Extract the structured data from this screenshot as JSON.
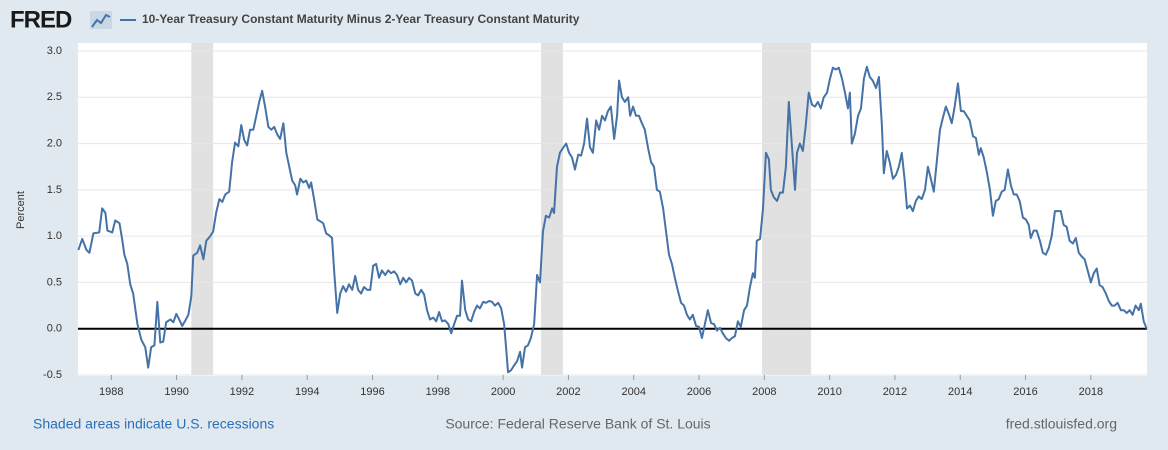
{
  "logo": "FRED",
  "chart_data": {
    "type": "line",
    "title": "10-Year Treasury Constant Maturity Minus 2-Year Treasury Constant Maturity",
    "y_label": "Percent",
    "note": "Shaded areas indicate U.S. recessions",
    "source": "Source: Federal Reserve Bank of St. Louis",
    "site": "fred.stlouisfed.org",
    "xlim": [
      1986.98,
      2019.72
    ],
    "xticks": [
      1988,
      1990,
      1992,
      1994,
      1996,
      1998,
      2000,
      2002,
      2004,
      2006,
      2008,
      2010,
      2012,
      2014,
      2016,
      2018
    ],
    "ylim": [
      -0.5,
      3.0
    ],
    "yticks": [
      -0.5,
      {
        "value": 0,
        "label": "0.0"
      },
      0.5,
      {
        "value": 1,
        "label": "1.0"
      },
      1.5,
      {
        "value": 2,
        "label": "2.0"
      },
      2.5,
      {
        "value": 3,
        "label": "3.0"
      }
    ],
    "grid": true,
    "recessions": [
      [
        1990.45,
        1991.12
      ],
      [
        2001.16,
        2001.83
      ],
      [
        2007.93,
        2009.43
      ]
    ],
    "recession_color": "#e1e1e1",
    "x": [
      1986.99,
      1987.11,
      1987.24,
      1987.33,
      1987.45,
      1987.63,
      1987.72,
      1987.82,
      1987.88,
      1988.03,
      1988.12,
      1988.25,
      1988.34,
      1988.4,
      1988.49,
      1988.58,
      1988.67,
      1988.8,
      1988.92,
      1989.04,
      1989.13,
      1989.22,
      1989.32,
      1989.41,
      1989.5,
      1989.59,
      1989.68,
      1989.81,
      1989.9,
      1989.99,
      1990.08,
      1990.17,
      1990.27,
      1990.36,
      1990.45,
      1990.51,
      1990.63,
      1990.72,
      1990.82,
      1990.91,
      1991.03,
      1991.12,
      1991.21,
      1991.31,
      1991.4,
      1991.49,
      1991.61,
      1991.7,
      1991.79,
      1991.89,
      1991.98,
      1992.07,
      1992.16,
      1992.25,
      1992.35,
      1992.44,
      1992.53,
      1992.62,
      1992.71,
      1992.81,
      1992.9,
      1992.99,
      1993.08,
      1993.17,
      1993.27,
      1993.36,
      1993.45,
      1993.54,
      1993.63,
      1993.69,
      1993.79,
      1993.88,
      1993.97,
      1994.06,
      1994.12,
      1994.21,
      1994.31,
      1994.4,
      1994.49,
      1994.58,
      1994.67,
      1994.76,
      1994.83,
      1994.92,
      1995.01,
      1995.1,
      1995.19,
      1995.28,
      1995.38,
      1995.47,
      1995.56,
      1995.65,
      1995.74,
      1995.84,
      1995.93,
      1996.02,
      1996.11,
      1996.2,
      1996.29,
      1996.39,
      1996.48,
      1996.57,
      1996.66,
      1996.75,
      1996.85,
      1996.94,
      1997.03,
      1997.12,
      1997.21,
      1997.31,
      1997.4,
      1997.49,
      1997.58,
      1997.67,
      1997.76,
      1997.86,
      1997.95,
      1998.04,
      1998.13,
      1998.22,
      1998.32,
      1998.41,
      1998.5,
      1998.59,
      1998.68,
      1998.74,
      1998.84,
      1998.93,
      1999.02,
      1999.11,
      1999.2,
      1999.29,
      1999.39,
      1999.48,
      1999.57,
      1999.66,
      1999.75,
      1999.85,
      1999.94,
      2000.03,
      2000.09,
      2000.15,
      2000.24,
      2000.33,
      2000.43,
      2000.52,
      2000.58,
      2000.67,
      2000.76,
      2000.85,
      2000.95,
      2001.04,
      2001.13,
      2001.22,
      2001.31,
      2001.41,
      2001.5,
      2001.56,
      2001.65,
      2001.74,
      2001.83,
      2001.93,
      2002.02,
      2002.11,
      2002.2,
      2002.3,
      2002.39,
      2002.48,
      2002.57,
      2002.66,
      2002.75,
      2002.85,
      2002.94,
      2003.03,
      2003.12,
      2003.21,
      2003.3,
      2003.4,
      2003.49,
      2003.55,
      2003.64,
      2003.73,
      2003.83,
      2003.89,
      2003.98,
      2004.07,
      2004.16,
      2004.25,
      2004.34,
      2004.44,
      2004.53,
      2004.62,
      2004.71,
      2004.8,
      2004.9,
      2004.99,
      2005.08,
      2005.17,
      2005.26,
      2005.36,
      2005.45,
      2005.54,
      2005.63,
      2005.72,
      2005.81,
      2005.91,
      2006.0,
      2006.09,
      2006.18,
      2006.27,
      2006.37,
      2006.46,
      2006.55,
      2006.64,
      2006.73,
      2006.82,
      2006.92,
      2007.01,
      2007.1,
      2007.19,
      2007.28,
      2007.38,
      2007.47,
      2007.56,
      2007.65,
      2007.71,
      2007.77,
      2007.87,
      2007.96,
      2008.05,
      2008.14,
      2008.2,
      2008.29,
      2008.39,
      2008.48,
      2008.57,
      2008.66,
      2008.75,
      2008.85,
      2008.94,
      2009.0,
      2009.09,
      2009.18,
      2009.27,
      2009.36,
      2009.46,
      2009.55,
      2009.64,
      2009.73,
      2009.82,
      2009.92,
      2010.01,
      2010.1,
      2010.19,
      2010.28,
      2010.38,
      2010.47,
      2010.56,
      2010.62,
      2010.68,
      2010.77,
      2010.87,
      2010.96,
      2011.05,
      2011.14,
      2011.23,
      2011.32,
      2011.42,
      2011.51,
      2011.6,
      2011.66,
      2011.75,
      2011.84,
      2011.94,
      2012.03,
      2012.12,
      2012.21,
      2012.3,
      2012.37,
      2012.46,
      2012.55,
      2012.64,
      2012.73,
      2012.82,
      2012.92,
      2013.01,
      2013.1,
      2013.19,
      2013.28,
      2013.38,
      2013.47,
      2013.56,
      2013.65,
      2013.74,
      2013.83,
      2013.93,
      2014.02,
      2014.11,
      2014.2,
      2014.29,
      2014.39,
      2014.48,
      2014.57,
      2014.63,
      2014.72,
      2014.81,
      2014.91,
      2015.0,
      2015.09,
      2015.18,
      2015.27,
      2015.36,
      2015.46,
      2015.55,
      2015.64,
      2015.73,
      2015.82,
      2015.92,
      2016.01,
      2016.1,
      2016.16,
      2016.25,
      2016.34,
      2016.44,
      2016.53,
      2016.62,
      2016.71,
      2016.8,
      2016.9,
      2016.99,
      2017.08,
      2017.17,
      2017.26,
      2017.35,
      2017.45,
      2017.54,
      2017.63,
      2017.72,
      2017.81,
      2017.91,
      2018.0,
      2018.09,
      2018.18,
      2018.27,
      2018.36,
      2018.46,
      2018.55,
      2018.64,
      2018.73,
      2018.82,
      2018.92,
      2019.01,
      2019.1,
      2019.19,
      2019.28,
      2019.37,
      2019.47,
      2019.53,
      2019.62,
      2019.71
    ],
    "series": [
      {
        "name": "10-Year Treasury Constant Maturity Minus 2-Year Treasury Constant Maturity",
        "color": "#4572a7",
        "values": [
          0.85,
          0.97,
          0.85,
          0.82,
          1.03,
          1.04,
          1.3,
          1.25,
          1.06,
          1.04,
          1.17,
          1.14,
          0.95,
          0.8,
          0.7,
          0.48,
          0.38,
          0.05,
          -0.12,
          -0.2,
          -0.42,
          -0.2,
          -0.18,
          0.29,
          -0.15,
          -0.14,
          0.07,
          0.1,
          0.07,
          0.16,
          0.1,
          0.03,
          0.09,
          0.15,
          0.35,
          0.79,
          0.82,
          0.9,
          0.75,
          0.95,
          1.0,
          1.05,
          1.25,
          1.4,
          1.37,
          1.45,
          1.48,
          1.8,
          2.01,
          1.97,
          2.2,
          2.04,
          1.98,
          2.15,
          2.15,
          2.3,
          2.45,
          2.57,
          2.4,
          2.18,
          2.15,
          2.18,
          2.1,
          2.05,
          2.22,
          1.9,
          1.75,
          1.6,
          1.55,
          1.45,
          1.62,
          1.58,
          1.6,
          1.52,
          1.58,
          1.4,
          1.18,
          1.16,
          1.14,
          1.03,
          1.01,
          0.98,
          0.6,
          0.17,
          0.38,
          0.46,
          0.4,
          0.48,
          0.42,
          0.57,
          0.42,
          0.38,
          0.45,
          0.42,
          0.42,
          0.68,
          0.7,
          0.55,
          0.63,
          0.58,
          0.63,
          0.6,
          0.62,
          0.58,
          0.48,
          0.55,
          0.5,
          0.55,
          0.52,
          0.38,
          0.36,
          0.42,
          0.37,
          0.2,
          0.1,
          0.12,
          0.08,
          0.18,
          0.08,
          0.09,
          0.05,
          -0.05,
          0.05,
          0.14,
          0.14,
          0.52,
          0.2,
          0.1,
          0.08,
          0.18,
          0.25,
          0.22,
          0.29,
          0.28,
          0.3,
          0.29,
          0.25,
          0.28,
          0.22,
          0.05,
          -0.2,
          -0.47,
          -0.45,
          -0.4,
          -0.35,
          -0.25,
          -0.42,
          -0.2,
          -0.18,
          -0.1,
          0.05,
          0.58,
          0.5,
          1.05,
          1.22,
          1.2,
          1.3,
          1.25,
          1.75,
          1.9,
          1.95,
          2.0,
          1.9,
          1.85,
          1.72,
          1.88,
          1.87,
          2.0,
          2.27,
          1.96,
          1.9,
          2.25,
          2.15,
          2.3,
          2.25,
          2.35,
          2.4,
          2.05,
          2.3,
          2.68,
          2.5,
          2.45,
          2.5,
          2.3,
          2.4,
          2.3,
          2.3,
          2.22,
          2.15,
          1.95,
          1.8,
          1.75,
          1.5,
          1.48,
          1.3,
          1.05,
          0.8,
          0.7,
          0.55,
          0.4,
          0.28,
          0.25,
          0.15,
          0.1,
          0.15,
          0.03,
          0.02,
          -0.1,
          0.05,
          0.2,
          0.06,
          0.05,
          -0.02,
          0.01,
          -0.05,
          -0.1,
          -0.13,
          -0.1,
          -0.08,
          0.08,
          0.02,
          0.2,
          0.25,
          0.45,
          0.6,
          0.55,
          0.95,
          0.97,
          1.3,
          1.9,
          1.83,
          1.5,
          1.42,
          1.38,
          1.47,
          1.47,
          1.75,
          2.45,
          1.95,
          1.5,
          1.9,
          2.0,
          1.92,
          2.2,
          2.55,
          2.42,
          2.4,
          2.45,
          2.38,
          2.5,
          2.55,
          2.7,
          2.82,
          2.8,
          2.82,
          2.7,
          2.55,
          2.38,
          2.55,
          2.0,
          2.1,
          2.3,
          2.38,
          2.7,
          2.83,
          2.72,
          2.68,
          2.6,
          2.72,
          2.2,
          1.68,
          1.92,
          1.8,
          1.62,
          1.66,
          1.75,
          1.9,
          1.6,
          1.3,
          1.33,
          1.27,
          1.38,
          1.43,
          1.4,
          1.5,
          1.75,
          1.62,
          1.48,
          1.8,
          2.15,
          2.28,
          2.4,
          2.32,
          2.22,
          2.4,
          2.65,
          2.35,
          2.35,
          2.3,
          2.25,
          2.08,
          2.06,
          1.88,
          1.95,
          1.85,
          1.7,
          1.5,
          1.22,
          1.38,
          1.4,
          1.48,
          1.5,
          1.72,
          1.55,
          1.45,
          1.45,
          1.38,
          1.2,
          1.18,
          1.12,
          0.98,
          1.06,
          1.06,
          0.95,
          0.82,
          0.8,
          0.87,
          1.0,
          1.27,
          1.27,
          1.27,
          1.12,
          1.1,
          0.95,
          0.92,
          0.98,
          0.82,
          0.78,
          0.75,
          0.62,
          0.5,
          0.6,
          0.65,
          0.47,
          0.45,
          0.38,
          0.3,
          0.25,
          0.25,
          0.28,
          0.2,
          0.2,
          0.17,
          0.2,
          0.15,
          0.25,
          0.2,
          0.27,
          0.08,
          0.0
        ]
      }
    ]
  }
}
